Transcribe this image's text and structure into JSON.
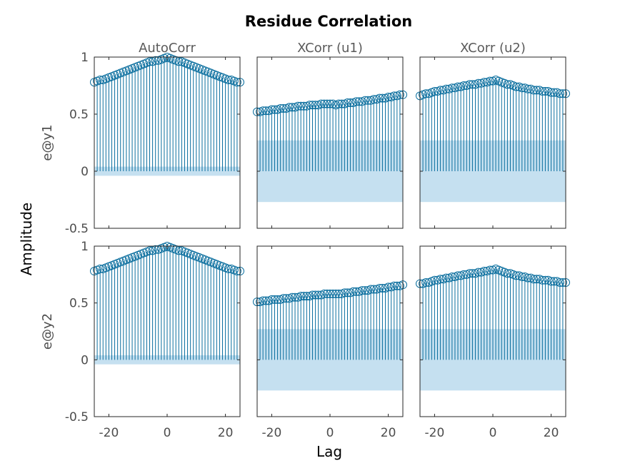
{
  "chart_data": {
    "type": "stem",
    "title": "Residue Correlation",
    "xlabel": "Lag",
    "ylabel": "Amplitude",
    "xlim": [
      -25,
      25
    ],
    "ylim": [
      -0.5,
      1
    ],
    "x_ticks": [
      -20,
      0,
      20
    ],
    "x_tick_labels": [
      "-20",
      "0",
      "20"
    ],
    "y_ticks": [
      1,
      0.5,
      0,
      -0.5
    ],
    "y_tick_labels": [
      "1",
      "0.5",
      "0",
      "-0.5"
    ],
    "columns": [
      "AutoCorr",
      "XCorr (u1)",
      "XCorr (u2)"
    ],
    "rows": [
      "e@y1",
      "e@y2"
    ],
    "lags": [
      -25,
      -24,
      -23,
      -22,
      -21,
      -20,
      -19,
      -18,
      -17,
      -16,
      -15,
      -14,
      -13,
      -12,
      -11,
      -10,
      -9,
      -8,
      -7,
      -6,
      -5,
      -4,
      -3,
      -2,
      -1,
      0,
      1,
      2,
      3,
      4,
      5,
      6,
      7,
      8,
      9,
      10,
      11,
      12,
      13,
      14,
      15,
      16,
      17,
      18,
      19,
      20,
      21,
      22,
      23,
      24,
      25
    ],
    "panels": [
      {
        "row": "e@y1",
        "column": "AutoCorr",
        "values": [
          0.78,
          0.79,
          0.8,
          0.8,
          0.81,
          0.82,
          0.83,
          0.84,
          0.85,
          0.86,
          0.87,
          0.88,
          0.89,
          0.9,
          0.91,
          0.92,
          0.93,
          0.94,
          0.95,
          0.96,
          0.96,
          0.97,
          0.97,
          0.98,
          0.99,
          1.0,
          0.99,
          0.98,
          0.97,
          0.96,
          0.96,
          0.95,
          0.94,
          0.93,
          0.92,
          0.91,
          0.9,
          0.89,
          0.88,
          0.87,
          0.86,
          0.85,
          0.84,
          0.83,
          0.82,
          0.81,
          0.8,
          0.8,
          0.79,
          0.78,
          0.78
        ],
        "confidence": 0.04
      },
      {
        "row": "e@y1",
        "column": "XCorr (u1)",
        "values": [
          0.52,
          0.52,
          0.53,
          0.53,
          0.53,
          0.54,
          0.54,
          0.54,
          0.55,
          0.55,
          0.55,
          0.56,
          0.56,
          0.56,
          0.57,
          0.57,
          0.57,
          0.57,
          0.58,
          0.58,
          0.58,
          0.58,
          0.59,
          0.59,
          0.59,
          0.59,
          0.59,
          0.58,
          0.59,
          0.59,
          0.59,
          0.6,
          0.6,
          0.6,
          0.61,
          0.61,
          0.61,
          0.62,
          0.62,
          0.62,
          0.63,
          0.63,
          0.64,
          0.64,
          0.64,
          0.65,
          0.65,
          0.66,
          0.66,
          0.67,
          0.67
        ],
        "confidence": 0.27
      },
      {
        "row": "e@y1",
        "column": "XCorr (u2)",
        "values": [
          0.66,
          0.67,
          0.68,
          0.68,
          0.69,
          0.7,
          0.7,
          0.71,
          0.71,
          0.72,
          0.72,
          0.73,
          0.73,
          0.74,
          0.74,
          0.75,
          0.75,
          0.76,
          0.76,
          0.76,
          0.77,
          0.77,
          0.78,
          0.78,
          0.79,
          0.79,
          0.8,
          0.79,
          0.78,
          0.77,
          0.76,
          0.76,
          0.75,
          0.74,
          0.74,
          0.73,
          0.73,
          0.72,
          0.72,
          0.71,
          0.71,
          0.71,
          0.7,
          0.7,
          0.7,
          0.69,
          0.69,
          0.69,
          0.68,
          0.68,
          0.68
        ],
        "confidence": 0.27
      },
      {
        "row": "e@y2",
        "column": "AutoCorr",
        "values": [
          0.78,
          0.79,
          0.8,
          0.8,
          0.81,
          0.82,
          0.83,
          0.84,
          0.85,
          0.86,
          0.87,
          0.88,
          0.89,
          0.9,
          0.91,
          0.92,
          0.93,
          0.94,
          0.95,
          0.96,
          0.96,
          0.97,
          0.97,
          0.98,
          0.99,
          1.0,
          0.99,
          0.98,
          0.97,
          0.96,
          0.96,
          0.95,
          0.94,
          0.93,
          0.92,
          0.91,
          0.9,
          0.89,
          0.88,
          0.87,
          0.86,
          0.85,
          0.84,
          0.83,
          0.82,
          0.81,
          0.8,
          0.8,
          0.79,
          0.78,
          0.78
        ],
        "confidence": 0.04
      },
      {
        "row": "e@y2",
        "column": "XCorr (u1)",
        "values": [
          0.51,
          0.51,
          0.52,
          0.52,
          0.52,
          0.53,
          0.53,
          0.53,
          0.53,
          0.54,
          0.54,
          0.54,
          0.55,
          0.55,
          0.55,
          0.56,
          0.56,
          0.56,
          0.56,
          0.57,
          0.57,
          0.57,
          0.57,
          0.58,
          0.58,
          0.58,
          0.58,
          0.58,
          0.58,
          0.58,
          0.59,
          0.59,
          0.59,
          0.6,
          0.6,
          0.6,
          0.61,
          0.61,
          0.61,
          0.62,
          0.62,
          0.62,
          0.63,
          0.63,
          0.63,
          0.64,
          0.64,
          0.65,
          0.65,
          0.65,
          0.66
        ],
        "confidence": 0.27
      },
      {
        "row": "e@y2",
        "column": "XCorr (u2)",
        "values": [
          0.67,
          0.67,
          0.68,
          0.68,
          0.69,
          0.7,
          0.7,
          0.71,
          0.71,
          0.72,
          0.72,
          0.73,
          0.73,
          0.74,
          0.74,
          0.75,
          0.75,
          0.76,
          0.76,
          0.76,
          0.77,
          0.77,
          0.78,
          0.78,
          0.79,
          0.79,
          0.8,
          0.79,
          0.78,
          0.77,
          0.76,
          0.76,
          0.75,
          0.74,
          0.74,
          0.73,
          0.73,
          0.72,
          0.72,
          0.71,
          0.71,
          0.71,
          0.7,
          0.7,
          0.7,
          0.69,
          0.69,
          0.69,
          0.68,
          0.68,
          0.68
        ],
        "confidence": 0.27
      }
    ],
    "colors": {
      "stem": "#0a6e9e",
      "marker": "#0a6e9e",
      "confidence_band": "#c5e0f0",
      "axes": "#262626",
      "tick_text": "#4d4d4d"
    },
    "marker": "circle-open",
    "grid": false,
    "legend": "none"
  }
}
